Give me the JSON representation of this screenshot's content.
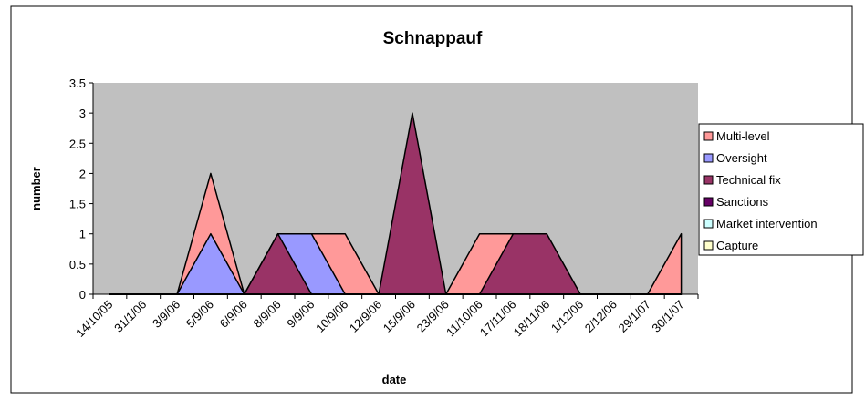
{
  "chart_data": {
    "type": "area",
    "title": "Schnappauf",
    "xlabel": "date",
    "ylabel": "number",
    "categories": [
      "14/10/05",
      "31/1/06",
      "3/9/06",
      "5/9/06",
      "6/9/06",
      "8/9/06",
      "9/9/06",
      "10/9/06",
      "12/9/06",
      "15/9/06",
      "23/9/06",
      "11/10/06",
      "17/11/06",
      "18/11/06",
      "1/12/06",
      "2/12/06",
      "29/1/07",
      "30/1/07"
    ],
    "series": [
      {
        "name": "Multi-level",
        "color": "#ff9999",
        "values": [
          0,
          0,
          0,
          2,
          0,
          1,
          1,
          1,
          0,
          0,
          0,
          1,
          1,
          0,
          0,
          0,
          0,
          1
        ]
      },
      {
        "name": "Oversight",
        "color": "#9999ff",
        "values": [
          0,
          0,
          0,
          1,
          0,
          1,
          1,
          0,
          0,
          0,
          0,
          0,
          0,
          0,
          0,
          0,
          0,
          0
        ]
      },
      {
        "name": "Technical fix",
        "color": "#993366",
        "values": [
          0,
          0,
          0,
          0,
          0,
          1,
          0,
          0,
          0,
          3,
          0,
          0,
          1,
          1,
          0,
          0,
          0,
          0
        ]
      },
      {
        "name": "Sanctions",
        "color": "#660066",
        "values": [
          0,
          0,
          0,
          0,
          0,
          0,
          0,
          0,
          0,
          0,
          0,
          0,
          0,
          0,
          0,
          0,
          0,
          0
        ]
      },
      {
        "name": "Market intervention",
        "color": "#ccffff",
        "values": [
          0,
          0,
          0,
          0,
          0,
          0,
          0,
          0,
          0,
          0,
          0,
          0,
          0,
          0,
          0,
          0,
          0,
          0
        ]
      },
      {
        "name": "Capture",
        "color": "#ffffcc",
        "values": [
          0,
          0,
          0,
          0,
          0,
          0,
          0,
          0,
          0,
          0,
          0,
          0,
          0,
          0,
          0,
          0,
          0,
          0
        ]
      }
    ],
    "ylim": [
      0,
      3.5
    ],
    "yticks": [
      0,
      0.5,
      1,
      1.5,
      2,
      2.5,
      3,
      3.5
    ],
    "legend": "right",
    "background": "#c0c0c0"
  }
}
